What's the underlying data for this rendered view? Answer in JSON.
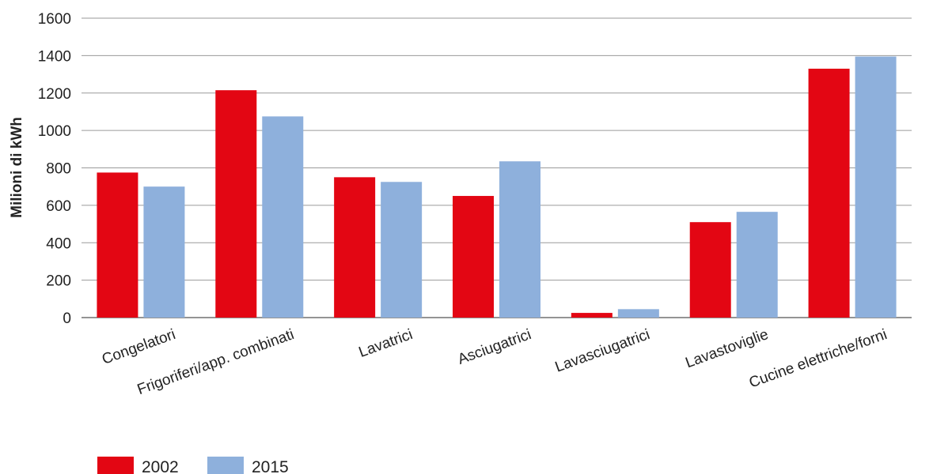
{
  "chart_data": {
    "type": "bar",
    "title": "",
    "xlabel": "",
    "ylabel": "Milioni di kWh",
    "ylim": [
      0,
      1600
    ],
    "yticks": [
      0,
      200,
      400,
      600,
      800,
      1000,
      1200,
      1400,
      1600
    ],
    "grid": true,
    "legend_position": "bottom-left",
    "categories": [
      "Congelatori",
      "Frigoriferi/app. combinati",
      "Lavatrici",
      "Asciugatrici",
      "Lavasciugatrici",
      "Lavastoviglie",
      "Cucine elettriche/forni"
    ],
    "series": [
      {
        "name": "2002",
        "color": "#e30613",
        "values": [
          775,
          1215,
          750,
          650,
          25,
          510,
          1330
        ]
      },
      {
        "name": "2015",
        "color": "#8eb0dc",
        "values": [
          700,
          1075,
          725,
          835,
          45,
          565,
          1395
        ]
      }
    ]
  }
}
